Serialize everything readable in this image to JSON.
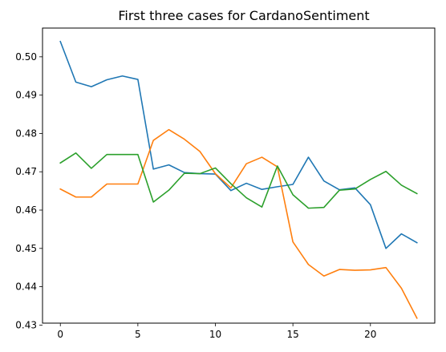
{
  "chart_data": {
    "type": "line",
    "title": "First three cases for CardanoSentiment",
    "xlabel": "",
    "ylabel": "",
    "xlim": [
      -1.15,
      24.15
    ],
    "ylim": [
      0.4305,
      0.5075
    ],
    "xticks": [
      0,
      5,
      10,
      15,
      20
    ],
    "yticks": [
      0.43,
      0.44,
      0.45,
      0.46,
      0.47,
      0.48,
      0.49,
      0.5
    ],
    "xtick_labels": [
      "0",
      "5",
      "10",
      "15",
      "20"
    ],
    "ytick_labels": [
      "0.43",
      "0.44",
      "0.45",
      "0.46",
      "0.47",
      "0.48",
      "0.49",
      "0.50"
    ],
    "grid": false,
    "x": [
      0,
      1,
      2,
      3,
      4,
      5,
      6,
      7,
      8,
      9,
      10,
      11,
      12,
      13,
      14,
      15,
      16,
      17,
      18,
      19,
      20,
      21,
      22,
      23
    ],
    "series": [
      {
        "color": "#1f77b4",
        "values": [
          0.504,
          0.4934,
          0.4922,
          0.494,
          0.495,
          0.4941,
          0.4707,
          0.4718,
          0.4698,
          0.4695,
          0.4694,
          0.4651,
          0.467,
          0.4654,
          0.4661,
          0.4667,
          0.4738,
          0.4676,
          0.4653,
          0.4658,
          0.4614,
          0.45,
          0.4538,
          0.4515
        ]
      },
      {
        "color": "#ff7f0e",
        "values": [
          0.4655,
          0.4634,
          0.4634,
          0.4668,
          0.4668,
          0.4668,
          0.4782,
          0.481,
          0.4785,
          0.4753,
          0.4695,
          0.4658,
          0.4721,
          0.4738,
          0.4713,
          0.4517,
          0.4458,
          0.4428,
          0.4445,
          0.4443,
          0.4444,
          0.445,
          0.4396,
          0.4318
        ]
      },
      {
        "color": "#2ca02c",
        "values": [
          0.4723,
          0.4749,
          0.4709,
          0.4745,
          0.4745,
          0.4745,
          0.4621,
          0.4652,
          0.4696,
          0.4695,
          0.471,
          0.4669,
          0.4632,
          0.4608,
          0.4715,
          0.464,
          0.4605,
          0.4607,
          0.4652,
          0.4655,
          0.468,
          0.4701,
          0.4665,
          0.4643
        ]
      }
    ]
  }
}
